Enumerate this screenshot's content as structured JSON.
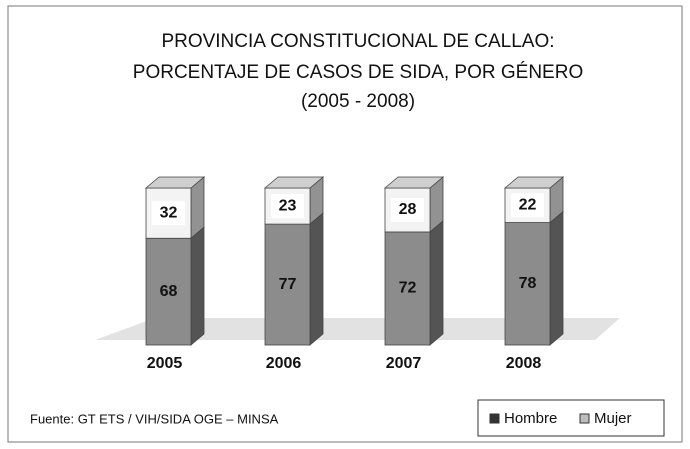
{
  "chart_data": {
    "type": "stacked-bar-3d",
    "title": [
      "PROVINCIA CONSTITUCIONAL DE CALLAO:",
      "PORCENTAJE DE CASOS DE SIDA, POR GÉNERO",
      "(2005 - 2008)"
    ],
    "categories": [
      "2005",
      "2006",
      "2007",
      "2008"
    ],
    "series": [
      {
        "name": "Hombre",
        "color": "#8c8c8c",
        "values": [
          68,
          77,
          72,
          78
        ]
      },
      {
        "name": "Mujer",
        "color": "#f3f3f3",
        "values": [
          32,
          23,
          28,
          22
        ]
      }
    ],
    "source": "Fuente: GT ETS / VIH/SIDA OGE – MINSA",
    "legend": "bottom-right"
  }
}
